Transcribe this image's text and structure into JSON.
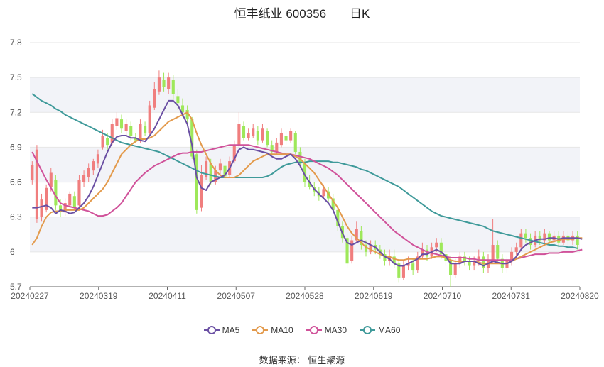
{
  "title": {
    "main": "恒丰纸业 600356",
    "period": "日K"
  },
  "source": "数据来源： 恒生聚源",
  "colors": {
    "up": "#f07e7e",
    "down": "#9ee85a",
    "grid_band": "#f2f3f8",
    "ma5": "#6a4fa3",
    "ma10": "#e39a4c",
    "ma30": "#d0529a",
    "ma60": "#3f9a9a"
  },
  "chart_data": {
    "type": "candlestick",
    "title": "恒丰纸业 600356",
    "ylim": [
      5.7,
      7.8
    ],
    "y_ticks": [
      "5.7",
      "6",
      "6.3",
      "6.6",
      "6.9",
      "7.2",
      "7.5",
      "7.8"
    ],
    "x_ticks": [
      "20240227",
      "20240319",
      "20240411",
      "20240507",
      "20240528",
      "20240619",
      "20240710",
      "20240731",
      "20240820"
    ],
    "grid": true,
    "legend_position": "bottom",
    "legend": [
      {
        "name": "MA5",
        "color_key": "ma5"
      },
      {
        "name": "MA10",
        "color_key": "ma10"
      },
      {
        "name": "MA30",
        "color_key": "ma30"
      },
      {
        "name": "MA60",
        "color_key": "ma60"
      }
    ],
    "candles": [
      [
        6.62,
        6.75,
        6.78,
        6.58
      ],
      [
        6.28,
        6.88,
        6.92,
        6.25
      ],
      [
        6.3,
        6.45,
        6.5,
        6.26
      ],
      [
        6.36,
        6.55,
        6.58,
        6.34
      ],
      [
        6.56,
        6.68,
        6.72,
        6.52
      ],
      [
        6.62,
        6.4,
        6.66,
        6.36
      ],
      [
        6.4,
        6.35,
        6.45,
        6.3
      ],
      [
        6.34,
        6.42,
        6.46,
        6.31
      ],
      [
        6.4,
        6.5,
        6.52,
        6.38
      ],
      [
        6.48,
        6.38,
        6.52,
        6.36
      ],
      [
        6.4,
        6.62,
        6.66,
        6.38
      ],
      [
        6.6,
        6.66,
        6.7,
        6.56
      ],
      [
        6.64,
        6.72,
        6.76,
        6.6
      ],
      [
        6.7,
        6.78,
        6.8,
        6.66
      ],
      [
        6.76,
        6.84,
        6.88,
        6.72
      ],
      [
        6.9,
        7.0,
        7.05,
        6.88
      ],
      [
        6.98,
        6.92,
        7.02,
        6.88
      ],
      [
        6.94,
        7.1,
        7.14,
        6.92
      ],
      [
        7.08,
        7.15,
        7.2,
        7.05
      ],
      [
        7.14,
        7.06,
        7.18,
        7.02
      ],
      [
        7.04,
        7.1,
        7.14,
        7.0
      ],
      [
        7.08,
        7.0,
        7.12,
        6.96
      ],
      [
        6.98,
        6.96,
        7.02,
        6.94
      ],
      [
        6.96,
        7.1,
        7.14,
        6.94
      ],
      [
        7.08,
        7.02,
        7.12,
        7.0
      ],
      [
        7.02,
        7.26,
        7.3,
        7.0
      ],
      [
        7.24,
        7.4,
        7.46,
        7.22
      ],
      [
        7.38,
        7.5,
        7.56,
        7.35
      ],
      [
        7.48,
        7.42,
        7.54,
        7.38
      ],
      [
        7.4,
        7.5,
        7.54,
        7.36
      ],
      [
        7.48,
        7.36,
        7.52,
        7.3
      ],
      [
        7.34,
        7.28,
        7.4,
        7.22
      ],
      [
        7.26,
        7.2,
        7.32,
        7.16
      ],
      [
        7.22,
        7.14,
        7.26,
        7.1
      ],
      [
        7.14,
        6.82,
        7.16,
        6.8
      ],
      [
        6.84,
        6.36,
        6.88,
        6.33
      ],
      [
        6.38,
        6.66,
        6.75,
        6.35
      ],
      [
        6.64,
        6.78,
        6.82,
        6.62
      ],
      [
        6.76,
        6.6,
        6.8,
        6.58
      ],
      [
        6.6,
        6.7,
        6.74,
        6.58
      ],
      [
        6.7,
        6.76,
        6.8,
        6.66
      ],
      [
        6.74,
        6.65,
        6.78,
        6.62
      ],
      [
        6.66,
        6.78,
        6.82,
        6.64
      ],
      [
        6.78,
        6.92,
        6.96,
        6.76
      ],
      [
        6.92,
        7.1,
        7.2,
        6.9
      ],
      [
        7.08,
        6.98,
        7.12,
        6.96
      ],
      [
        6.98,
        7.02,
        7.06,
        6.96
      ],
      [
        7.0,
        7.06,
        7.1,
        6.98
      ],
      [
        7.04,
        6.96,
        7.08,
        6.92
      ],
      [
        6.96,
        7.06,
        7.1,
        6.94
      ],
      [
        7.04,
        6.92,
        7.06,
        6.9
      ],
      [
        6.92,
        6.86,
        6.96,
        6.84
      ],
      [
        6.86,
        6.94,
        6.98,
        6.84
      ],
      [
        6.92,
        7.02,
        7.06,
        6.9
      ],
      [
        7.0,
        6.96,
        7.04,
        6.92
      ],
      [
        6.96,
        7.04,
        7.06,
        6.94
      ],
      [
        7.02,
        6.86,
        7.04,
        6.84
      ],
      [
        6.86,
        6.76,
        6.9,
        6.72
      ],
      [
        6.76,
        6.6,
        6.8,
        6.56
      ],
      [
        6.6,
        6.56,
        6.66,
        6.54
      ],
      [
        6.56,
        6.52,
        6.6,
        6.48
      ],
      [
        6.52,
        6.48,
        6.56,
        6.44
      ],
      [
        6.48,
        6.54,
        6.58,
        6.46
      ],
      [
        6.52,
        6.46,
        6.56,
        6.42
      ],
      [
        6.46,
        6.36,
        6.5,
        6.34
      ],
      [
        6.36,
        6.22,
        6.4,
        6.18
      ],
      [
        6.22,
        6.12,
        6.26,
        6.08
      ],
      [
        6.12,
        5.9,
        6.16,
        5.86
      ],
      [
        5.92,
        6.1,
        6.14,
        5.9
      ],
      [
        6.1,
        6.2,
        6.26,
        6.08
      ],
      [
        6.18,
        6.06,
        6.22,
        6.02
      ],
      [
        6.06,
        6.0,
        6.1,
        5.96
      ],
      [
        6.0,
        6.06,
        6.1,
        5.98
      ],
      [
        6.06,
        6.02,
        6.1,
        5.98
      ],
      [
        6.02,
        5.98,
        6.06,
        5.94
      ],
      [
        5.98,
        5.92,
        6.02,
        5.88
      ],
      [
        5.92,
        5.96,
        6.02,
        5.88
      ],
      [
        5.96,
        5.9,
        6.02,
        5.86
      ],
      [
        5.9,
        5.78,
        5.94,
        5.74
      ],
      [
        5.78,
        5.88,
        5.92,
        5.76
      ],
      [
        5.88,
        5.9,
        5.96,
        5.84
      ],
      [
        5.9,
        5.84,
        5.94,
        5.8
      ],
      [
        5.84,
        5.96,
        6.0,
        5.82
      ],
      [
        5.96,
        6.02,
        6.08,
        5.94
      ],
      [
        6.02,
        5.96,
        6.06,
        5.92
      ],
      [
        5.96,
        6.04,
        6.08,
        5.94
      ],
      [
        6.04,
        6.08,
        6.12,
        6.0
      ],
      [
        6.08,
        5.98,
        6.12,
        5.94
      ],
      [
        5.98,
        5.92,
        6.02,
        5.88
      ],
      [
        5.92,
        5.8,
        5.96,
        5.7
      ],
      [
        5.8,
        5.9,
        5.94,
        5.78
      ],
      [
        5.9,
        5.96,
        6.0,
        5.86
      ],
      [
        5.96,
        5.92,
        6.0,
        5.88
      ],
      [
        5.92,
        5.88,
        5.96,
        5.84
      ],
      [
        5.88,
        5.92,
        5.96,
        5.84
      ],
      [
        5.92,
        5.96,
        6.02,
        5.88
      ],
      [
        5.96,
        5.86,
        6.0,
        5.82
      ],
      [
        5.86,
        5.92,
        5.98,
        5.82
      ],
      [
        5.92,
        6.06,
        6.28,
        5.9
      ],
      [
        6.06,
        5.94,
        6.1,
        5.9
      ],
      [
        5.94,
        5.86,
        5.98,
        5.82
      ],
      [
        5.86,
        5.92,
        5.96,
        5.82
      ],
      [
        5.92,
        6.0,
        6.04,
        5.88
      ],
      [
        6.0,
        6.04,
        6.08,
        5.96
      ],
      [
        6.04,
        6.16,
        6.2,
        6.02
      ],
      [
        6.16,
        6.12,
        6.2,
        6.08
      ],
      [
        6.12,
        6.06,
        6.16,
        6.02
      ],
      [
        6.06,
        6.14,
        6.18,
        6.04
      ],
      [
        6.14,
        6.1,
        6.18,
        6.06
      ],
      [
        6.1,
        6.16,
        6.2,
        6.06
      ],
      [
        6.16,
        6.1,
        6.18,
        6.06
      ],
      [
        6.1,
        6.14,
        6.18,
        6.06
      ],
      [
        6.14,
        6.08,
        6.18,
        6.04
      ],
      [
        6.08,
        6.14,
        6.18,
        6.06
      ],
      [
        6.14,
        6.1,
        6.18,
        6.06
      ],
      [
        6.1,
        6.14,
        6.18,
        6.06
      ],
      [
        6.14,
        6.06,
        6.18,
        6.02
      ]
    ],
    "ma5": [
      6.38,
      6.38,
      6.39,
      6.4,
      6.38,
      6.33,
      6.36,
      6.35,
      6.33,
      6.34,
      6.38,
      6.42,
      6.48,
      6.56,
      6.66,
      6.76,
      6.86,
      6.94,
      6.99,
      7.0,
      7.0,
      6.98,
      6.98,
      6.96,
      6.95,
      7.0,
      7.06,
      7.14,
      7.22,
      7.3,
      7.3,
      7.26,
      7.18,
      7.1,
      6.92,
      6.64,
      6.55,
      6.53,
      6.6,
      6.62,
      6.64,
      6.66,
      6.72,
      6.8,
      6.88,
      6.9,
      6.88,
      6.88,
      6.87,
      6.86,
      6.85,
      6.82,
      6.8,
      6.8,
      6.82,
      6.84,
      6.8,
      6.74,
      6.66,
      6.6,
      6.54,
      6.5,
      6.46,
      6.42,
      6.36,
      6.26,
      6.16,
      6.08,
      6.06,
      6.08,
      6.1,
      6.08,
      6.06,
      6.04,
      6.0,
      5.96,
      5.94,
      5.9,
      5.88,
      5.88,
      5.9,
      5.92,
      5.94,
      5.98,
      5.98,
      6.0,
      6.02,
      6.0,
      5.96,
      5.9,
      5.9,
      5.9,
      5.92,
      5.92,
      5.92,
      5.9,
      5.88,
      5.9,
      5.92,
      5.91,
      5.9,
      5.9,
      5.92,
      5.96,
      6.02,
      6.06,
      6.08,
      6.1,
      6.11,
      6.11,
      6.12,
      6.12,
      6.11,
      6.12,
      6.12,
      6.12,
      6.12,
      6.11
    ],
    "ma10": [
      6.06,
      6.12,
      6.22,
      6.3,
      6.34,
      6.35,
      6.35,
      6.36,
      6.36,
      6.36,
      6.36,
      6.38,
      6.42,
      6.46,
      6.5,
      6.54,
      6.6,
      6.68,
      6.76,
      6.84,
      6.88,
      6.92,
      6.95,
      6.97,
      6.97,
      6.98,
      7.0,
      7.04,
      7.08,
      7.12,
      7.14,
      7.16,
      7.18,
      7.2,
      7.14,
      7.02,
      6.92,
      6.84,
      6.76,
      6.7,
      6.66,
      6.64,
      6.64,
      6.64,
      6.66,
      6.7,
      6.74,
      6.78,
      6.8,
      6.82,
      6.84,
      6.84,
      6.84,
      6.84,
      6.84,
      6.84,
      6.82,
      6.8,
      6.76,
      6.72,
      6.68,
      6.62,
      6.56,
      6.5,
      6.44,
      6.38,
      6.3,
      6.22,
      6.16,
      6.12,
      6.08,
      6.04,
      6.02,
      6.0,
      5.98,
      5.96,
      5.96,
      5.94,
      5.93,
      5.93,
      5.94,
      5.94,
      5.94,
      5.94,
      5.94,
      5.95,
      5.96,
      5.96,
      5.95,
      5.93,
      5.92,
      5.92,
      5.92,
      5.92,
      5.92,
      5.91,
      5.9,
      5.9,
      5.9,
      5.9,
      5.9,
      5.9,
      5.92,
      5.94,
      5.96,
      5.98,
      6.0,
      6.02,
      6.04,
      6.06,
      6.08,
      6.09,
      6.1,
      6.11,
      6.11,
      6.11,
      6.12,
      6.12
    ],
    "ma30": [
      6.86,
      6.78,
      6.7,
      6.62,
      6.55,
      6.48,
      6.42,
      6.4,
      6.39,
      6.38,
      6.37,
      6.36,
      6.35,
      6.33,
      6.31,
      6.31,
      6.32,
      6.35,
      6.38,
      6.42,
      6.48,
      6.54,
      6.6,
      6.64,
      6.68,
      6.71,
      6.74,
      6.76,
      6.78,
      6.8,
      6.82,
      6.84,
      6.85,
      6.85,
      6.86,
      6.86,
      6.86,
      6.87,
      6.88,
      6.89,
      6.9,
      6.91,
      6.92,
      6.92,
      6.92,
      6.92,
      6.92,
      6.91,
      6.9,
      6.89,
      6.88,
      6.87,
      6.86,
      6.85,
      6.84,
      6.84,
      6.83,
      6.82,
      6.81,
      6.8,
      6.78,
      6.76,
      6.74,
      6.72,
      6.69,
      6.66,
      6.62,
      6.58,
      6.54,
      6.5,
      6.46,
      6.42,
      6.38,
      6.34,
      6.3,
      6.26,
      6.22,
      6.18,
      6.15,
      6.12,
      6.09,
      6.06,
      6.04,
      6.02,
      6.0,
      5.99,
      5.98,
      5.97,
      5.96,
      5.95,
      5.95,
      5.95,
      5.95,
      5.94,
      5.94,
      5.93,
      5.93,
      5.93,
      5.93,
      5.93,
      5.93,
      5.93,
      5.93,
      5.94,
      5.95,
      5.96,
      5.97,
      5.98,
      5.98,
      5.98,
      5.99,
      5.99,
      5.99,
      6.0,
      6.0,
      6.0,
      6.01,
      6.02
    ],
    "ma60": [
      7.36,
      7.33,
      7.3,
      7.28,
      7.26,
      7.23,
      7.21,
      7.18,
      7.16,
      7.14,
      7.12,
      7.1,
      7.08,
      7.06,
      7.04,
      7.02,
      7.0,
      6.98,
      6.96,
      6.94,
      6.93,
      6.92,
      6.91,
      6.9,
      6.89,
      6.88,
      6.87,
      6.86,
      6.84,
      6.82,
      6.8,
      6.78,
      6.76,
      6.74,
      6.72,
      6.7,
      6.68,
      6.67,
      6.66,
      6.65,
      6.64,
      6.64,
      6.64,
      6.64,
      6.64,
      6.64,
      6.64,
      6.64,
      6.64,
      6.64,
      6.65,
      6.67,
      6.7,
      6.73,
      6.75,
      6.76,
      6.77,
      6.77,
      6.77,
      6.78,
      6.78,
      6.78,
      6.78,
      6.78,
      6.77,
      6.77,
      6.76,
      6.75,
      6.74,
      6.73,
      6.71,
      6.7,
      6.68,
      6.66,
      6.64,
      6.62,
      6.6,
      6.58,
      6.56,
      6.53,
      6.5,
      6.47,
      6.44,
      6.41,
      6.38,
      6.35,
      6.33,
      6.31,
      6.3,
      6.29,
      6.28,
      6.27,
      6.26,
      6.25,
      6.24,
      6.23,
      6.22,
      6.2,
      6.18,
      6.17,
      6.16,
      6.15,
      6.14,
      6.13,
      6.12,
      6.11,
      6.1,
      6.09,
      6.08,
      6.07,
      6.06,
      6.06,
      6.05,
      6.05,
      6.04,
      6.04,
      6.03
    ]
  }
}
